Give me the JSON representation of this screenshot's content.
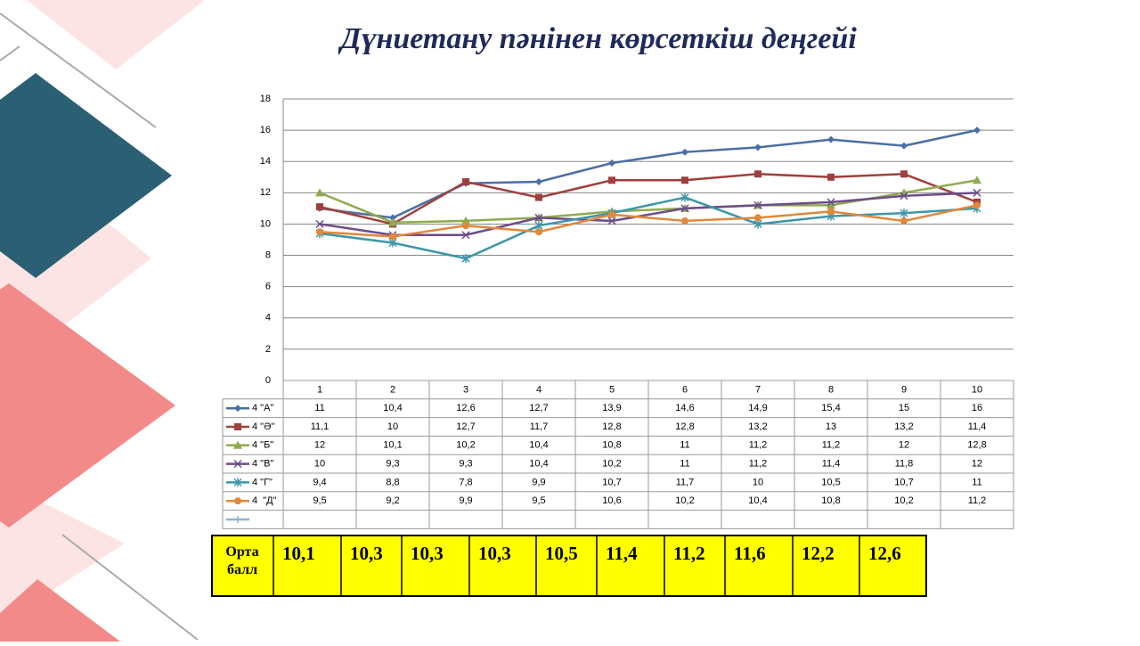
{
  "chart_data": {
    "type": "line",
    "title": "Дүниетану пәнінен көрсеткіш деңгейі",
    "categories": [
      "1",
      "2",
      "3",
      "4",
      "5",
      "6",
      "7",
      "8",
      "9",
      "10"
    ],
    "ylim": [
      0,
      18
    ],
    "yticks": [
      0,
      2,
      4,
      6,
      8,
      10,
      12,
      14,
      16,
      18
    ],
    "grid": true,
    "series": [
      {
        "name": "4 \"А\"",
        "color": "#4a6fa5",
        "marker": "diamond",
        "values": [
          11,
          10.4,
          12.6,
          12.7,
          13.9,
          14.6,
          14.9,
          15.4,
          15,
          16
        ],
        "value_labels": [
          "11",
          "10,4",
          "12,6",
          "12,7",
          "13,9",
          "14,6",
          "14,9",
          "15,4",
          "15",
          "16"
        ]
      },
      {
        "name": "4 \"Ә\"",
        "color": "#a0403d",
        "marker": "square",
        "values": [
          11.1,
          10,
          12.7,
          11.7,
          12.8,
          12.8,
          13.2,
          13,
          13.2,
          11.4
        ],
        "value_labels": [
          "11,1",
          "10",
          "12,7",
          "11,7",
          "12,8",
          "12,8",
          "13,2",
          "13",
          "13,2",
          "11,4"
        ]
      },
      {
        "name": "4 \"Б\"",
        "color": "#8faa4e",
        "marker": "triangle",
        "values": [
          12,
          10.1,
          10.2,
          10.4,
          10.8,
          11,
          11.2,
          11.2,
          12,
          12.8
        ],
        "value_labels": [
          "12",
          "10,1",
          "10,2",
          "10,4",
          "10,8",
          "11",
          "11,2",
          "11,2",
          "12",
          "12,8"
        ]
      },
      {
        "name": "4 \"В\"",
        "color": "#6d4c8a",
        "marker": "x",
        "values": [
          10,
          9.3,
          9.3,
          10.4,
          10.2,
          11,
          11.2,
          11.4,
          11.8,
          12
        ],
        "value_labels": [
          "10",
          "9,3",
          "9,3",
          "10,4",
          "10,2",
          "11",
          "11,2",
          "11,4",
          "11,8",
          "12"
        ]
      },
      {
        "name": "4 \"Г\"",
        "color": "#3e96a8",
        "marker": "star",
        "values": [
          9.4,
          8.8,
          7.8,
          9.9,
          10.7,
          11.7,
          10,
          10.5,
          10.7,
          11
        ],
        "value_labels": [
          "9,4",
          "8,8",
          "7,8",
          "9,9",
          "10,7",
          "11,7",
          "10",
          "10,5",
          "10,7",
          "11"
        ]
      },
      {
        "name": "4  \"Д\"",
        "color": "#e0883c",
        "marker": "circle",
        "values": [
          9.5,
          9.2,
          9.9,
          9.5,
          10.6,
          10.2,
          10.4,
          10.8,
          10.2,
          11.2
        ],
        "value_labels": [
          "9,5",
          "9,2",
          "9,9",
          "9,5",
          "10,6",
          "10,2",
          "10,4",
          "10,8",
          "10,2",
          "11,2"
        ]
      }
    ]
  },
  "average": {
    "label": "Орта балл",
    "cells": [
      "10,1",
      "10,3",
      "10,3",
      "10,3",
      "10,5",
      "11,4",
      "11,2",
      "11,6",
      "12,2",
      "12,6"
    ]
  }
}
